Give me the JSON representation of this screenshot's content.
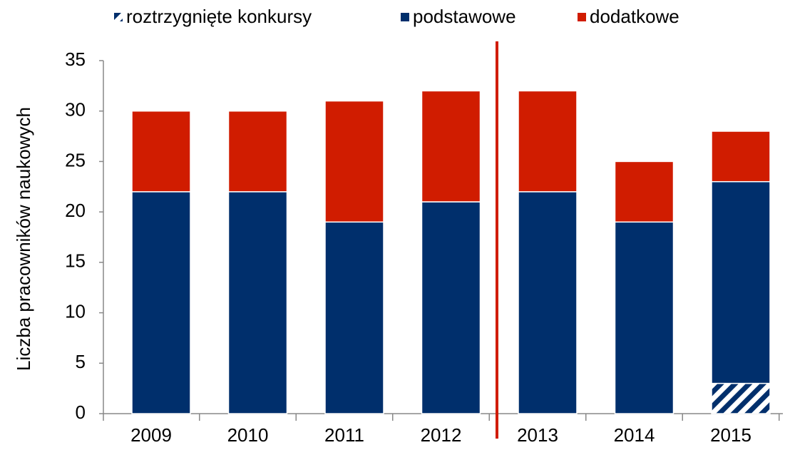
{
  "chart_data": {
    "type": "stacked_bar",
    "y_axis_label": "Liczba pracowników  naukowych",
    "categories": [
      "2009",
      "2010",
      "2011",
      "2012",
      "2013",
      "2014",
      "2015"
    ],
    "series": [
      {
        "name": "roztrzygnięte konkursy",
        "color": "#002f6c",
        "hatch": true,
        "values": [
          null,
          null,
          null,
          null,
          null,
          null,
          3
        ]
      },
      {
        "name": "podstawowe",
        "color": "#002f6c",
        "values": [
          22,
          22,
          19,
          21,
          22,
          19,
          20
        ]
      },
      {
        "name": "dodatkowe",
        "color": "#d01c00",
        "values": [
          8,
          8,
          12,
          11,
          10,
          6,
          5
        ]
      }
    ],
    "ylim": [
      0,
      35
    ],
    "yticks": [
      0,
      5,
      10,
      15,
      20,
      25,
      30,
      35
    ],
    "grid": false
  }
}
